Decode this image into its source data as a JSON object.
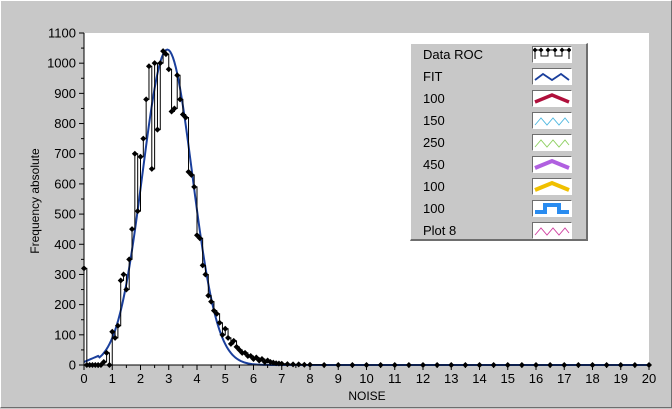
{
  "chart_data": {
    "type": "line",
    "xlabel": "NOISE",
    "ylabel": "Frequency absolute",
    "xlim": [
      0,
      20
    ],
    "ylim": [
      0,
      1100
    ],
    "x_ticks": [
      0,
      1,
      2,
      3,
      4,
      5,
      6,
      7,
      8,
      9,
      10,
      11,
      12,
      13,
      14,
      15,
      16,
      17,
      18,
      19,
      20
    ],
    "y_ticks": [
      0,
      100,
      200,
      300,
      400,
      500,
      600,
      700,
      800,
      900,
      1000,
      1100
    ],
    "grid": false,
    "legend_position": "top-right",
    "series": [
      {
        "name": "Data ROC",
        "color": "#000000",
        "style": "step-with-diamond-markers",
        "points": [
          [
            0.0,
            320
          ],
          [
            0.1,
            0
          ],
          [
            0.2,
            0
          ],
          [
            0.3,
            0
          ],
          [
            0.4,
            0
          ],
          [
            0.5,
            0
          ],
          [
            0.6,
            0
          ],
          [
            0.7,
            10
          ],
          [
            0.8,
            40
          ],
          [
            0.9,
            0
          ],
          [
            1.0,
            110
          ],
          [
            1.1,
            90
          ],
          [
            1.2,
            130
          ],
          [
            1.3,
            280
          ],
          [
            1.4,
            300
          ],
          [
            1.5,
            250
          ],
          [
            1.6,
            350
          ],
          [
            1.7,
            450
          ],
          [
            1.8,
            700
          ],
          [
            1.9,
            510
          ],
          [
            2.0,
            690
          ],
          [
            2.1,
            750
          ],
          [
            2.2,
            880
          ],
          [
            2.3,
            990
          ],
          [
            2.4,
            650
          ],
          [
            2.5,
            1000
          ],
          [
            2.6,
            780
          ],
          [
            2.7,
            1000
          ],
          [
            2.8,
            1040
          ],
          [
            2.9,
            1030
          ],
          [
            3.0,
            980
          ],
          [
            3.1,
            840
          ],
          [
            3.2,
            850
          ],
          [
            3.3,
            960
          ],
          [
            3.4,
            880
          ],
          [
            3.5,
            830
          ],
          [
            3.6,
            820
          ],
          [
            3.7,
            640
          ],
          [
            3.8,
            630
          ],
          [
            3.9,
            590
          ],
          [
            4.0,
            430
          ],
          [
            4.1,
            420
          ],
          [
            4.2,
            330
          ],
          [
            4.3,
            300
          ],
          [
            4.4,
            230
          ],
          [
            4.5,
            210
          ],
          [
            4.6,
            180
          ],
          [
            4.7,
            170
          ],
          [
            4.8,
            140
          ],
          [
            4.9,
            100
          ],
          [
            5.0,
            120
          ],
          [
            5.1,
            90
          ],
          [
            5.2,
            70
          ],
          [
            5.3,
            80
          ],
          [
            5.4,
            60
          ],
          [
            5.5,
            50
          ],
          [
            5.6,
            40
          ],
          [
            5.7,
            40
          ],
          [
            5.8,
            30
          ],
          [
            5.9,
            30
          ],
          [
            6.0,
            20
          ],
          [
            6.1,
            25
          ],
          [
            6.2,
            15
          ],
          [
            6.3,
            20
          ],
          [
            6.4,
            10
          ],
          [
            6.5,
            15
          ],
          [
            6.6,
            10
          ],
          [
            6.7,
            8
          ],
          [
            6.8,
            6
          ],
          [
            6.9,
            5
          ],
          [
            7.0,
            4
          ],
          [
            7.2,
            3
          ],
          [
            7.4,
            2
          ],
          [
            7.6,
            2
          ],
          [
            7.8,
            1
          ],
          [
            8.0,
            1
          ],
          [
            8.5,
            0
          ],
          [
            9.0,
            0
          ],
          [
            9.5,
            0
          ],
          [
            10.0,
            0
          ],
          [
            10.5,
            0
          ],
          [
            11.0,
            0
          ],
          [
            11.5,
            0
          ],
          [
            12.0,
            0
          ],
          [
            12.5,
            0
          ],
          [
            13.0,
            0
          ],
          [
            13.5,
            0
          ],
          [
            14.0,
            0
          ],
          [
            14.5,
            0
          ],
          [
            15.0,
            0
          ],
          [
            15.5,
            0
          ],
          [
            16.0,
            0
          ],
          [
            16.5,
            0
          ],
          [
            17.0,
            0
          ],
          [
            17.5,
            0
          ],
          [
            18.0,
            0
          ],
          [
            18.5,
            0
          ],
          [
            19.0,
            0
          ],
          [
            19.5,
            0
          ],
          [
            20.0,
            0
          ]
        ]
      },
      {
        "name": "FIT",
        "color": "#1a3f9c",
        "style": "line",
        "gaussian": {
          "amplitude": 1045,
          "mean": 2.95,
          "sigma": 0.88,
          "offset_at_zero": 10
        }
      }
    ],
    "legend_entries": [
      {
        "name": "Data ROC",
        "color": "#000000",
        "swatch": "data"
      },
      {
        "name": "FIT",
        "color": "#1a3f9c",
        "swatch": "zigzag-thin"
      },
      {
        "name": "100",
        "color": "#b0103c",
        "swatch": "zigzag-thick"
      },
      {
        "name": "150",
        "color": "#4fb8e0",
        "swatch": "zigzag-hair"
      },
      {
        "name": "250",
        "color": "#8ed060",
        "swatch": "zigzag-hair"
      },
      {
        "name": "450",
        "color": "#b060e0",
        "swatch": "zigzag-bold"
      },
      {
        "name": "100",
        "color": "#f0c000",
        "swatch": "zigzag-bold"
      },
      {
        "name": "100",
        "color": "#2a8cf0",
        "swatch": "step"
      },
      {
        "name": "Plot 8",
        "color": "#d040a0",
        "swatch": "zigzag-hair"
      }
    ]
  }
}
